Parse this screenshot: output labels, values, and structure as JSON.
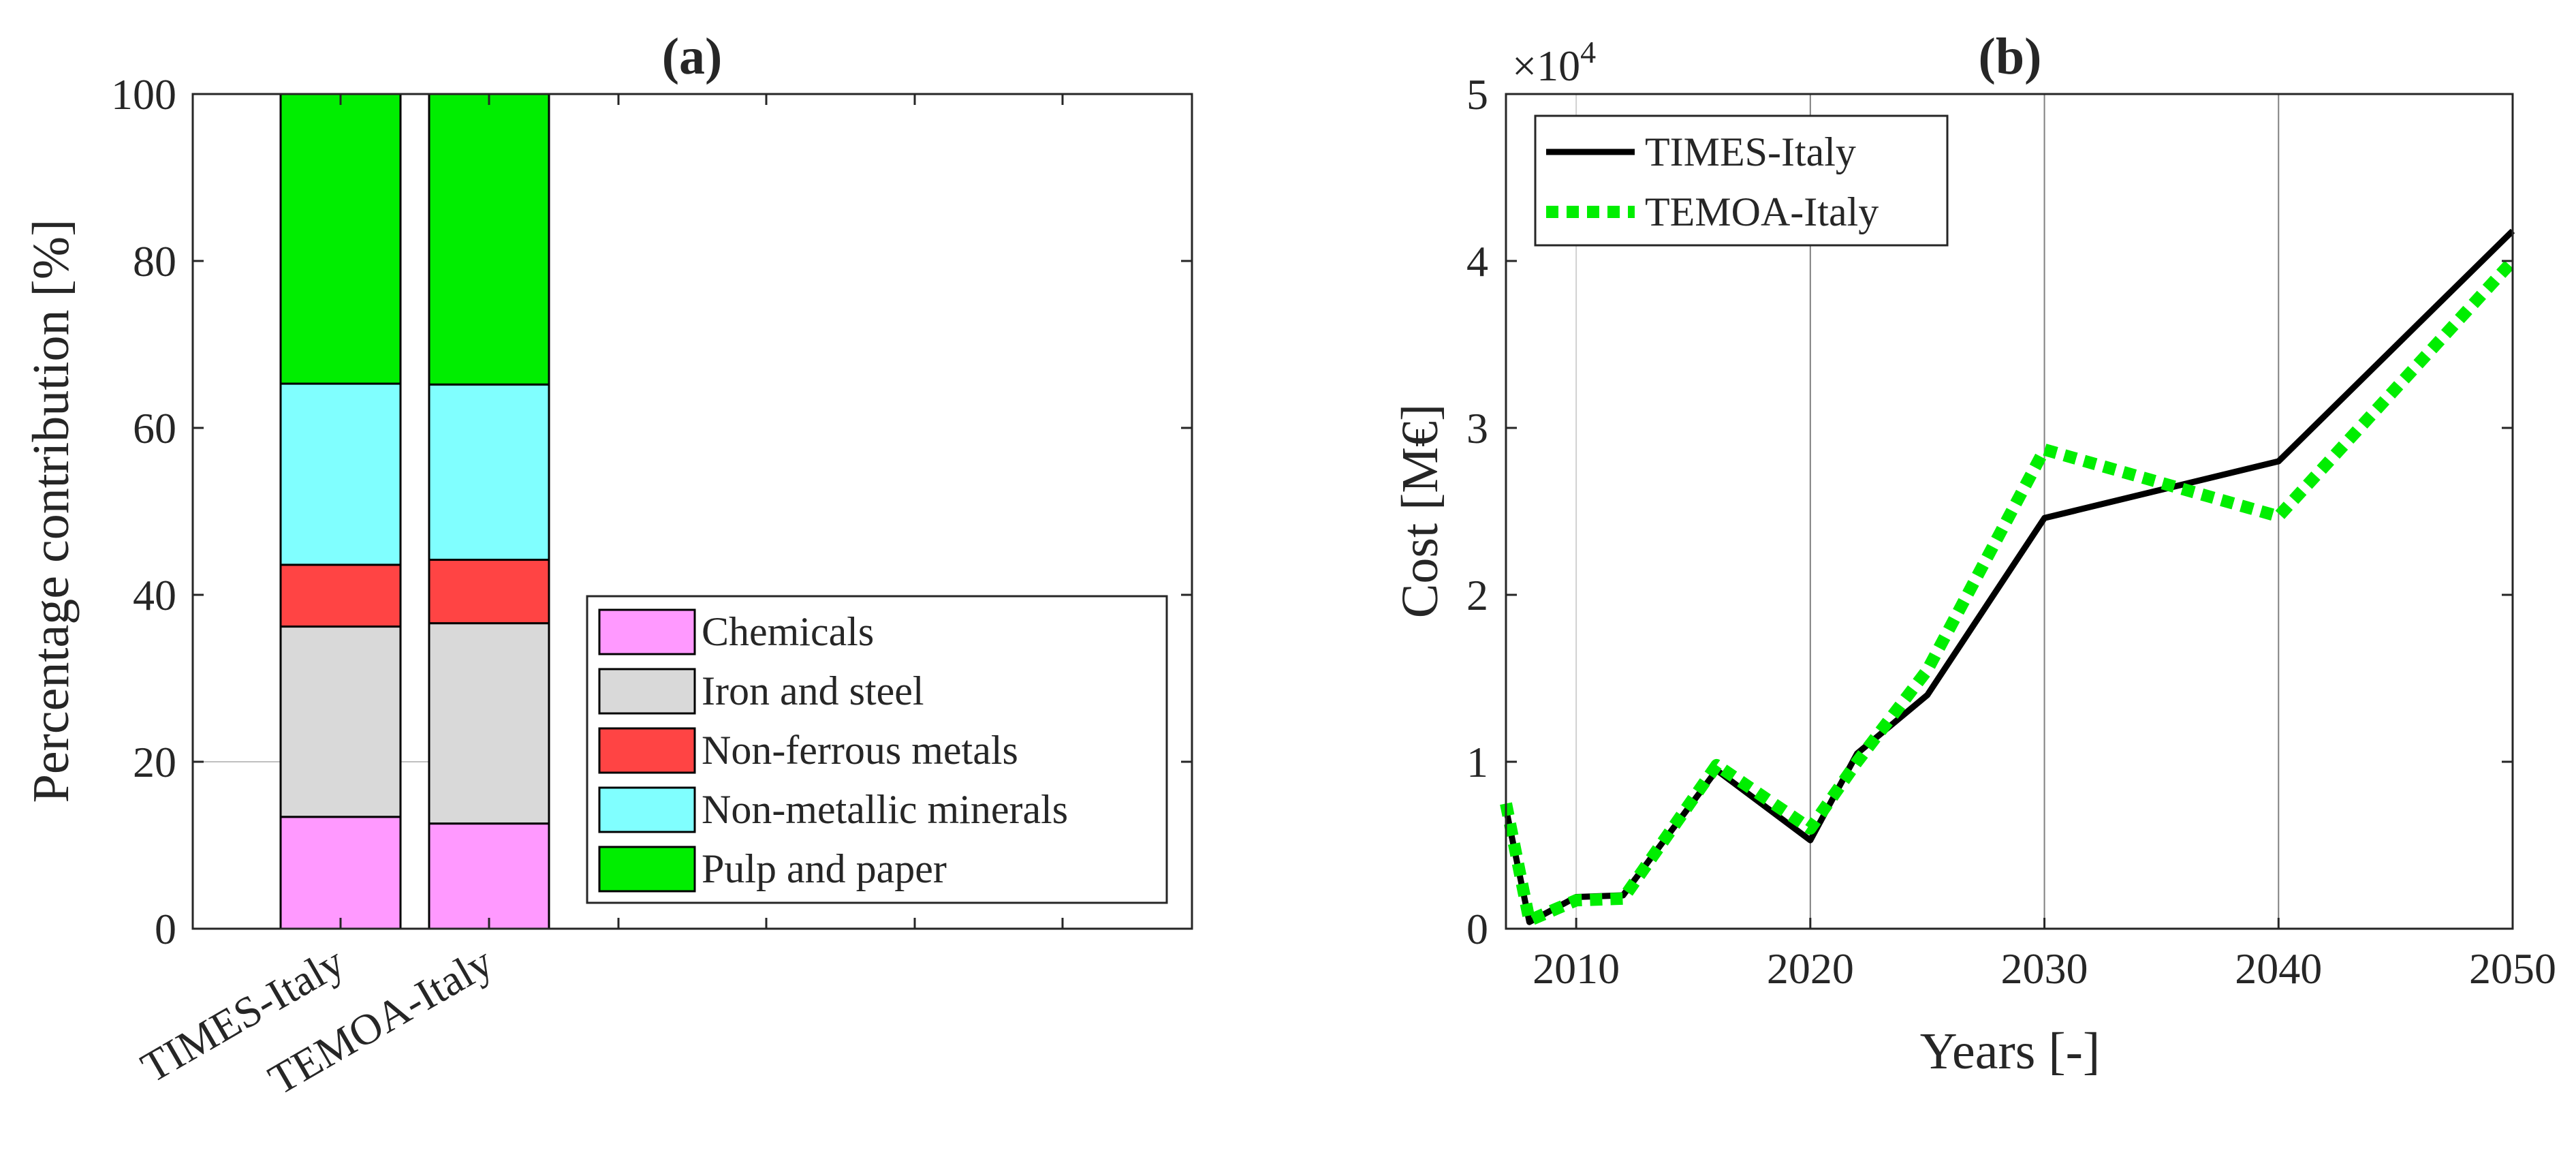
{
  "chart_data": [
    {
      "type": "bar",
      "stacked": true,
      "title": "(a)",
      "xlabel": "",
      "ylabel": "Percentage contribution [%]",
      "ylim": [
        0,
        100
      ],
      "yticks": [
        0,
        20,
        40,
        60,
        80,
        100
      ],
      "yticklabels": [
        "0",
        "20",
        "40",
        "60",
        "80",
        "100"
      ],
      "categories": [
        "TIMES-Italy",
        "TEMOA-Italy"
      ],
      "series": [
        {
          "name": "Chemicals",
          "color": "#ff99ff",
          "values": [
            13.4,
            12.6
          ]
        },
        {
          "name": "Iron and steel",
          "color": "#d9d9d9",
          "values": [
            22.8,
            24.0
          ]
        },
        {
          "name": "Non-ferrous metals",
          "color": "#ff4444",
          "values": [
            7.4,
            7.6
          ]
        },
        {
          "name": "Non-metallic minerals",
          "color": "#80ffff",
          "values": [
            21.7,
            21.0
          ]
        },
        {
          "name": "Pulp and paper",
          "color": "#00ee00",
          "values": [
            34.7,
            34.8
          ]
        }
      ],
      "grid": "partial",
      "legend_position": "bottom-right"
    },
    {
      "type": "line",
      "title": "(b)",
      "xlabel": "Years [-]",
      "ylabel": "Cost [M€]",
      "exponent_label": "×10",
      "exponent_power": "4",
      "xlim": [
        2007,
        2050
      ],
      "ylim": [
        0,
        5
      ],
      "xticks": [
        2010,
        2020,
        2030,
        2040,
        2050
      ],
      "xticklabels": [
        "2010",
        "2020",
        "2030",
        "2040",
        "2050"
      ],
      "yticks": [
        0,
        1,
        2,
        3,
        4,
        5
      ],
      "yticklabels": [
        "0",
        "1",
        "2",
        "3",
        "4",
        "5"
      ],
      "series": [
        {
          "name": "TIMES-Italy",
          "color": "#000000",
          "style": "solid",
          "x": [
            2007,
            2008,
            2010,
            2012,
            2016,
            2020,
            2022,
            2025,
            2030,
            2040,
            2050
          ],
          "y": [
            0.72,
            0.04,
            0.19,
            0.2,
            0.95,
            0.53,
            1.05,
            1.4,
            2.46,
            2.8,
            4.18
          ]
        },
        {
          "name": "TEMOA-Italy",
          "color": "#00ee00",
          "style": "dotted",
          "x": [
            2007,
            2008,
            2010,
            2012,
            2016,
            2020,
            2022,
            2025,
            2030,
            2040,
            2050
          ],
          "y": [
            0.75,
            0.05,
            0.17,
            0.18,
            0.98,
            0.6,
            1.0,
            1.55,
            2.87,
            2.47,
            4.0
          ]
        }
      ],
      "grid": "partial",
      "legend_position": "top-left"
    }
  ]
}
